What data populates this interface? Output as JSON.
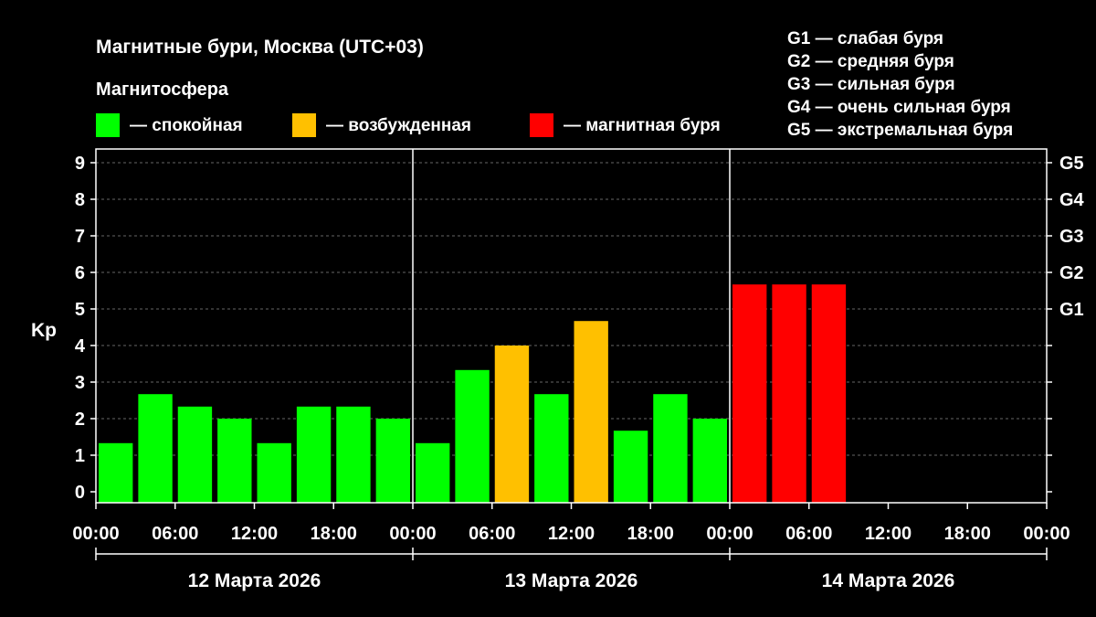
{
  "chart_data": {
    "type": "bar",
    "title": "Магнитные бури, Москва (UTC+03)",
    "legend": {
      "title": "Магнитосфера",
      "placement": "top-left",
      "items": [
        {
          "label": "— спокойная",
          "color": "#00ff00"
        },
        {
          "label": "— возбужденная",
          "color": "#ffc000"
        },
        {
          "label": "— магнитная буря",
          "color": "#ff0000"
        }
      ]
    },
    "g_legend": {
      "placement": "top-right",
      "items": [
        "G1 — слабая буря",
        "G2 — средняя буря",
        "G3 — сильная буря",
        "G4 — очень сильная буря",
        "G5 — экстремальная буря"
      ]
    },
    "ylabel": "Kp",
    "ylim": [
      0,
      9
    ],
    "y_ticks": [
      "0",
      "1",
      "2",
      "3",
      "4",
      "5",
      "6",
      "7",
      "8",
      "9"
    ],
    "g_ticks": [
      {
        "label": "G1",
        "kp": 5
      },
      {
        "label": "G2",
        "kp": 6
      },
      {
        "label": "G3",
        "kp": 7
      },
      {
        "label": "G4",
        "kp": 8
      },
      {
        "label": "G5",
        "kp": 9
      }
    ],
    "x_ticks": [
      "00:00",
      "06:00",
      "12:00",
      "18:00",
      "00:00",
      "06:00",
      "12:00",
      "18:00",
      "00:00",
      "06:00",
      "12:00",
      "18:00",
      "00:00"
    ],
    "days": [
      "12 Марта 2026",
      "13 Марта 2026",
      "14 Марта 2026"
    ],
    "grid": "horizontal dashed",
    "values": [
      1.33,
      2.67,
      2.33,
      2.0,
      1.33,
      2.33,
      2.33,
      2.0,
      1.33,
      3.33,
      4.0,
      2.67,
      4.67,
      1.67,
      2.67,
      2.0,
      5.67,
      5.67,
      5.67
    ],
    "colors": [
      "#00ff00",
      "#00ff00",
      "#00ff00",
      "#00ff00",
      "#00ff00",
      "#00ff00",
      "#00ff00",
      "#00ff00",
      "#00ff00",
      "#00ff00",
      "#ffc000",
      "#00ff00",
      "#ffc000",
      "#00ff00",
      "#00ff00",
      "#00ff00",
      "#ff0000",
      "#ff0000",
      "#ff0000"
    ]
  }
}
